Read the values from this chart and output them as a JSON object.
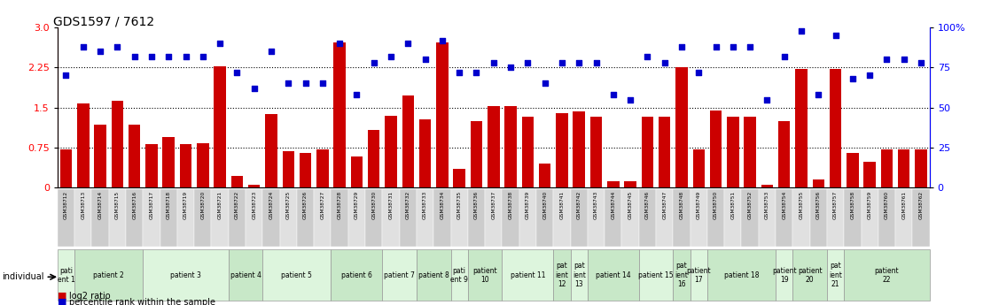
{
  "title": "GDS1597 / 7612",
  "samples": [
    "GSM38712",
    "GSM38713",
    "GSM38714",
    "GSM38715",
    "GSM38716",
    "GSM38717",
    "GSM38718",
    "GSM38719",
    "GSM38720",
    "GSM38721",
    "GSM38722",
    "GSM38723",
    "GSM38724",
    "GSM38725",
    "GSM38726",
    "GSM38727",
    "GSM38728",
    "GSM38729",
    "GSM38730",
    "GSM38731",
    "GSM38732",
    "GSM38733",
    "GSM38734",
    "GSM38735",
    "GSM38736",
    "GSM38737",
    "GSM38738",
    "GSM38739",
    "GSM38740",
    "GSM38741",
    "GSM38742",
    "GSM38743",
    "GSM38744",
    "GSM38745",
    "GSM38746",
    "GSM38747",
    "GSM38748",
    "GSM38749",
    "GSM38750",
    "GSM38751",
    "GSM38752",
    "GSM38753",
    "GSM38754",
    "GSM38755",
    "GSM38756",
    "GSM38757",
    "GSM38758",
    "GSM38759",
    "GSM38760",
    "GSM38761",
    "GSM38762"
  ],
  "log2_ratio": [
    0.72,
    1.57,
    1.18,
    1.63,
    1.18,
    0.82,
    0.95,
    0.82,
    0.83,
    2.28,
    0.22,
    0.05,
    1.38,
    0.68,
    0.65,
    0.72,
    2.72,
    0.58,
    1.08,
    1.35,
    1.72,
    1.28,
    2.72,
    0.35,
    1.25,
    1.52,
    1.52,
    1.33,
    0.45,
    1.4,
    1.42,
    1.32,
    0.12,
    0.12,
    1.33,
    1.32,
    2.25,
    0.72,
    1.45,
    1.32,
    1.32,
    0.05,
    1.25,
    2.22,
    0.15,
    2.22,
    0.65,
    0.48,
    0.72,
    0.72,
    0.72
  ],
  "percentile": [
    70,
    88,
    85,
    88,
    82,
    82,
    82,
    82,
    82,
    90,
    72,
    62,
    85,
    65,
    65,
    65,
    90,
    58,
    78,
    82,
    90,
    80,
    92,
    72,
    72,
    78,
    75,
    78,
    65,
    78,
    78,
    78,
    58,
    55,
    82,
    78,
    88,
    72,
    88,
    88,
    88,
    55,
    82,
    98,
    58,
    95,
    68,
    70,
    80,
    80,
    78
  ],
  "patients": [
    {
      "label": "pati\nent 1",
      "start": 0,
      "end": 0,
      "shade": 1
    },
    {
      "label": "patient 2",
      "start": 1,
      "end": 4,
      "shade": 0
    },
    {
      "label": "patient 3",
      "start": 5,
      "end": 9,
      "shade": 1
    },
    {
      "label": "patient 4",
      "start": 10,
      "end": 11,
      "shade": 0
    },
    {
      "label": "patient 5",
      "start": 12,
      "end": 15,
      "shade": 1
    },
    {
      "label": "patient 6",
      "start": 16,
      "end": 18,
      "shade": 0
    },
    {
      "label": "patient 7",
      "start": 19,
      "end": 20,
      "shade": 1
    },
    {
      "label": "patient 8",
      "start": 21,
      "end": 22,
      "shade": 0
    },
    {
      "label": "pati\nent 9",
      "start": 23,
      "end": 23,
      "shade": 1
    },
    {
      "label": "patient\n10",
      "start": 24,
      "end": 25,
      "shade": 0
    },
    {
      "label": "patient 11",
      "start": 26,
      "end": 28,
      "shade": 1
    },
    {
      "label": "pat\nient\n12",
      "start": 29,
      "end": 29,
      "shade": 0
    },
    {
      "label": "pat\nient\n13",
      "start": 30,
      "end": 30,
      "shade": 1
    },
    {
      "label": "patient 14",
      "start": 31,
      "end": 33,
      "shade": 0
    },
    {
      "label": "patient 15",
      "start": 34,
      "end": 35,
      "shade": 1
    },
    {
      "label": "pat\nient\n16",
      "start": 36,
      "end": 36,
      "shade": 0
    },
    {
      "label": "patient\n17",
      "start": 37,
      "end": 37,
      "shade": 1
    },
    {
      "label": "patient 18",
      "start": 38,
      "end": 41,
      "shade": 0
    },
    {
      "label": "patient\n19",
      "start": 42,
      "end": 42,
      "shade": 1
    },
    {
      "label": "patient\n20",
      "start": 43,
      "end": 44,
      "shade": 0
    },
    {
      "label": "pat\nient\n21",
      "start": 45,
      "end": 45,
      "shade": 1
    },
    {
      "label": "patient\n22",
      "start": 46,
      "end": 50,
      "shade": 0
    }
  ],
  "bar_color": "#cc0000",
  "dot_color": "#0000cc",
  "yticks_left": [
    0,
    0.75,
    1.5,
    2.25,
    3.0
  ],
  "yticks_right": [
    0,
    25,
    50,
    75,
    100
  ],
  "ylim_left": [
    0,
    3.0
  ],
  "ylim_right": [
    0,
    100
  ],
  "hlines": [
    0.75,
    1.5,
    2.25
  ],
  "patient_colors": [
    "#c8e8c8",
    "#ddf5dd"
  ],
  "sample_colors": [
    "#cccccc",
    "#e0e0e0"
  ]
}
